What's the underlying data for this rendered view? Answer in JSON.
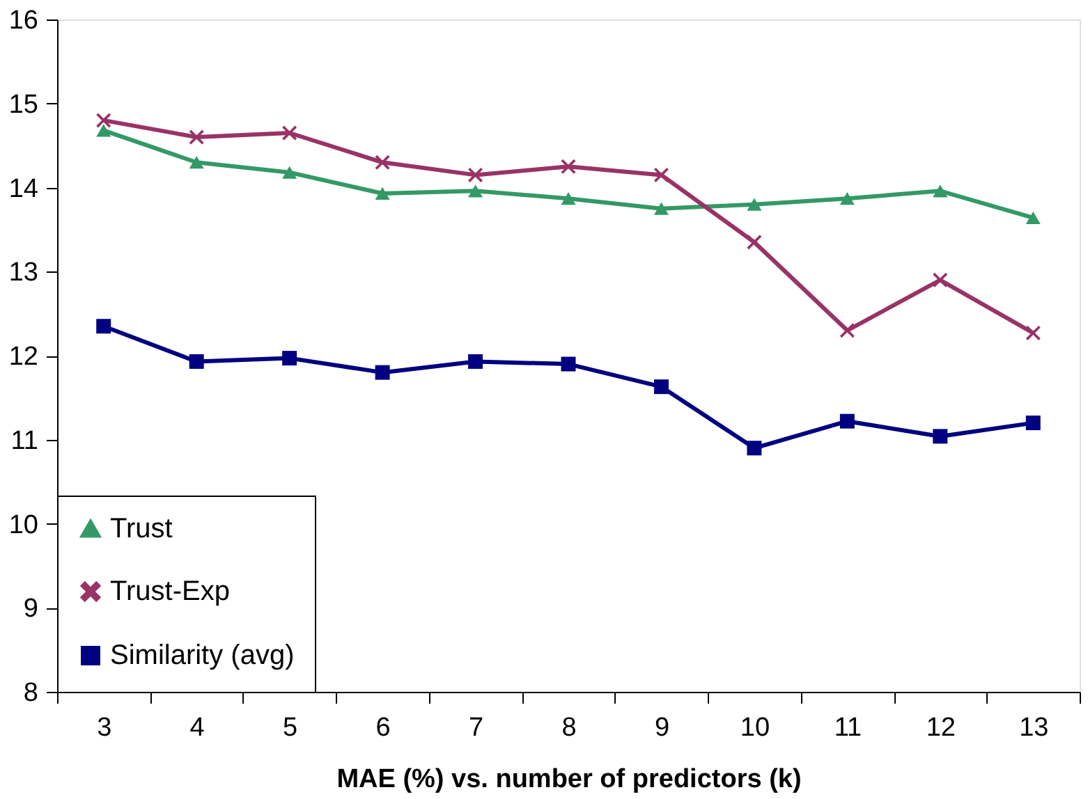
{
  "chart_data": {
    "type": "line",
    "xlabel": "MAE (%) vs. number of predictors (k)",
    "categories": [
      "3",
      "4",
      "5",
      "6",
      "7",
      "8",
      "9",
      "10",
      "11",
      "12",
      "13"
    ],
    "ylim": [
      8,
      16
    ],
    "yticks": [
      8,
      9,
      10,
      11,
      12,
      13,
      14,
      15,
      16
    ],
    "grid": false,
    "legend": "bottom left",
    "series": [
      {
        "name": "Trust",
        "color": "#339966",
        "marker": "triangle",
        "values": [
          14.68,
          14.3,
          14.18,
          13.93,
          13.96,
          13.87,
          13.75,
          13.8,
          13.87,
          13.96,
          13.64
        ]
      },
      {
        "name": "Trust-Exp",
        "color": "#993366",
        "marker": "cross",
        "values": [
          14.8,
          14.6,
          14.65,
          14.3,
          14.15,
          14.25,
          14.15,
          13.35,
          12.3,
          12.9,
          12.27
        ]
      },
      {
        "name": "Similarity (avg)",
        "color": "#000080",
        "marker": "square",
        "values": [
          12.35,
          11.93,
          11.97,
          11.8,
          11.93,
          11.9,
          11.63,
          10.9,
          11.22,
          11.04,
          11.2
        ]
      }
    ]
  }
}
